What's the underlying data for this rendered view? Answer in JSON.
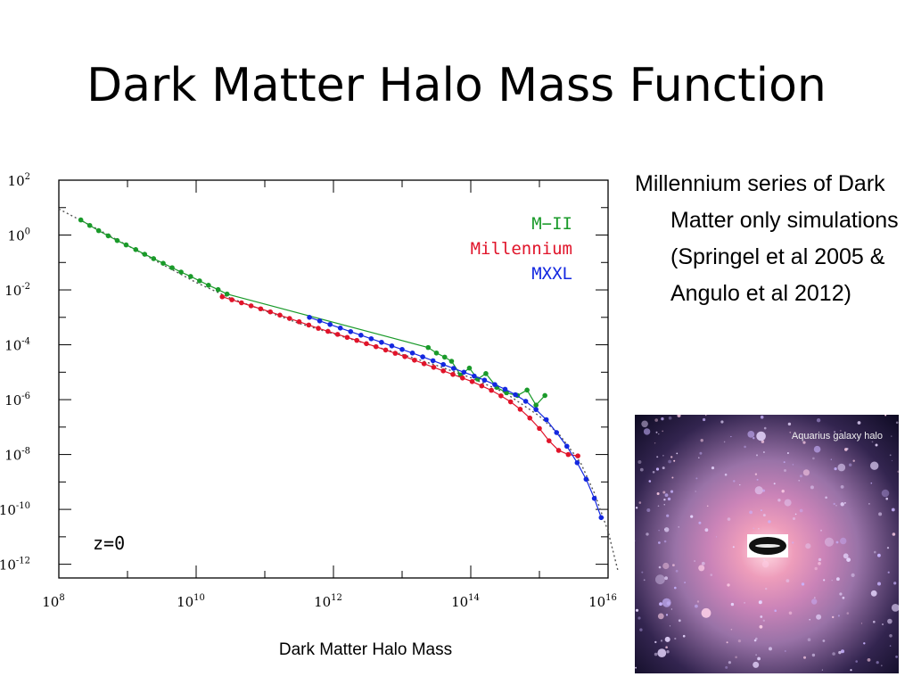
{
  "slide": {
    "title": "Dark Matter Halo Mass Function",
    "xlabel": "Dark Matter Halo Mass",
    "bullet": "Millennium series of Dark Matter only simulations (Springel et al 2005 & Angulo et al 2012)",
    "image_caption": "Aquarius galaxy halo"
  },
  "chart_data": {
    "type": "scatter",
    "title": "",
    "xlabel": "Dark Matter Halo Mass",
    "ylabel": "",
    "x_scale": "log10",
    "y_scale": "log10",
    "xlim_log10": [
      8,
      16
    ],
    "ylim_log10": [
      -12.5,
      2
    ],
    "x_tick_labels": [
      {
        "base": "10",
        "exp": "8",
        "log10": 8
      },
      {
        "base": "10",
        "exp": "10",
        "log10": 10
      },
      {
        "base": "10",
        "exp": "12",
        "log10": 12
      },
      {
        "base": "10",
        "exp": "14",
        "log10": 14
      },
      {
        "base": "10",
        "exp": "16",
        "log10": 16
      }
    ],
    "y_tick_labels": [
      {
        "base": "10",
        "exp": "2",
        "log10": 2
      },
      {
        "base": "10",
        "exp": "0",
        "log10": 0
      },
      {
        "base": "10",
        "exp": "-2",
        "log10": -2
      },
      {
        "base": "10",
        "exp": "-4",
        "log10": -4
      },
      {
        "base": "10",
        "exp": "-6",
        "log10": -6
      },
      {
        "base": "10",
        "exp": "-8",
        "log10": -8
      },
      {
        "base": "10",
        "exp": "-10",
        "log10": -10
      },
      {
        "base": "10",
        "exp": "-12",
        "log10": -12
      }
    ],
    "annotation": "z=0",
    "legend_position": "top-right",
    "series": [
      {
        "name": "M−II",
        "color": "#1a9a2a",
        "log10_x": [
          8.32,
          8.45,
          8.58,
          8.72,
          8.85,
          8.98,
          9.12,
          9.25,
          9.38,
          9.52,
          9.65,
          9.78,
          9.92,
          10.05,
          10.18,
          10.32,
          10.45,
          13.38,
          13.5,
          13.62,
          13.72,
          13.85,
          13.98,
          14.1,
          14.22,
          14.38,
          14.52,
          14.68,
          14.82,
          14.95,
          15.08
        ],
        "log10_y": [
          0.55,
          0.35,
          0.16,
          -0.03,
          -0.2,
          -0.36,
          -0.53,
          -0.7,
          -0.86,
          -1.03,
          -1.19,
          -1.35,
          -1.51,
          -1.67,
          -1.83,
          -1.99,
          -2.15,
          -4.1,
          -4.3,
          -4.45,
          -4.6,
          -5.1,
          -4.85,
          -5.25,
          -5.05,
          -5.55,
          -5.75,
          -5.85,
          -5.65,
          -6.2,
          -5.85
        ]
      },
      {
        "name": "Millennium",
        "color": "#e0142a",
        "log10_x": [
          10.38,
          10.52,
          10.66,
          10.8,
          10.94,
          11.08,
          11.22,
          11.36,
          11.5,
          11.64,
          11.78,
          11.92,
          12.06,
          12.2,
          12.34,
          12.48,
          12.62,
          12.76,
          12.9,
          13.04,
          13.18,
          13.32,
          13.46,
          13.6,
          13.74,
          13.88,
          14.02,
          14.16,
          14.3,
          14.44,
          14.58,
          14.72,
          14.86,
          15.0,
          15.14,
          15.28,
          15.42,
          15.56
        ],
        "log10_y": [
          -2.25,
          -2.36,
          -2.47,
          -2.58,
          -2.69,
          -2.8,
          -2.92,
          -3.04,
          -3.16,
          -3.28,
          -3.4,
          -3.51,
          -3.62,
          -3.73,
          -3.84,
          -3.96,
          -4.07,
          -4.19,
          -4.31,
          -4.43,
          -4.56,
          -4.69,
          -4.82,
          -4.95,
          -5.08,
          -5.21,
          -5.34,
          -5.5,
          -5.66,
          -5.86,
          -6.08,
          -6.35,
          -6.67,
          -7.05,
          -7.5,
          -7.85,
          -8.0,
          -8.05
        ]
      },
      {
        "name": "MXXL",
        "color": "#1428e0",
        "log10_x": [
          11.65,
          11.8,
          11.95,
          12.1,
          12.25,
          12.4,
          12.55,
          12.7,
          12.85,
          13.0,
          13.15,
          13.3,
          13.45,
          13.6,
          13.75,
          13.9,
          14.05,
          14.2,
          14.35,
          14.5,
          14.65,
          14.8,
          14.95,
          15.1,
          15.25,
          15.4,
          15.55,
          15.68,
          15.8,
          15.9
        ],
        "log10_y": [
          -3.0,
          -3.13,
          -3.26,
          -3.39,
          -3.52,
          -3.65,
          -3.78,
          -3.91,
          -4.04,
          -4.17,
          -4.3,
          -4.44,
          -4.58,
          -4.72,
          -4.86,
          -5.0,
          -5.14,
          -5.29,
          -5.45,
          -5.62,
          -5.82,
          -6.06,
          -6.36,
          -6.73,
          -7.2,
          -7.7,
          -8.3,
          -8.9,
          -9.6,
          -10.3
        ]
      }
    ],
    "fit_curve": {
      "name": "",
      "style": "dotted",
      "color": "#555555",
      "log10_x": [
        8.0,
        8.5,
        9.0,
        9.5,
        10.0,
        10.5,
        11.0,
        11.5,
        12.0,
        12.5,
        13.0,
        13.5,
        14.0,
        14.5,
        15.0,
        15.3,
        15.6,
        15.8,
        16.0,
        16.15
      ],
      "log10_y": [
        0.95,
        0.3,
        -0.38,
        -1.06,
        -1.73,
        -2.3,
        -2.76,
        -3.22,
        -3.6,
        -3.98,
        -4.35,
        -4.75,
        -5.2,
        -5.75,
        -6.6,
        -7.3,
        -8.3,
        -9.4,
        -10.8,
        -12.3
      ]
    }
  }
}
